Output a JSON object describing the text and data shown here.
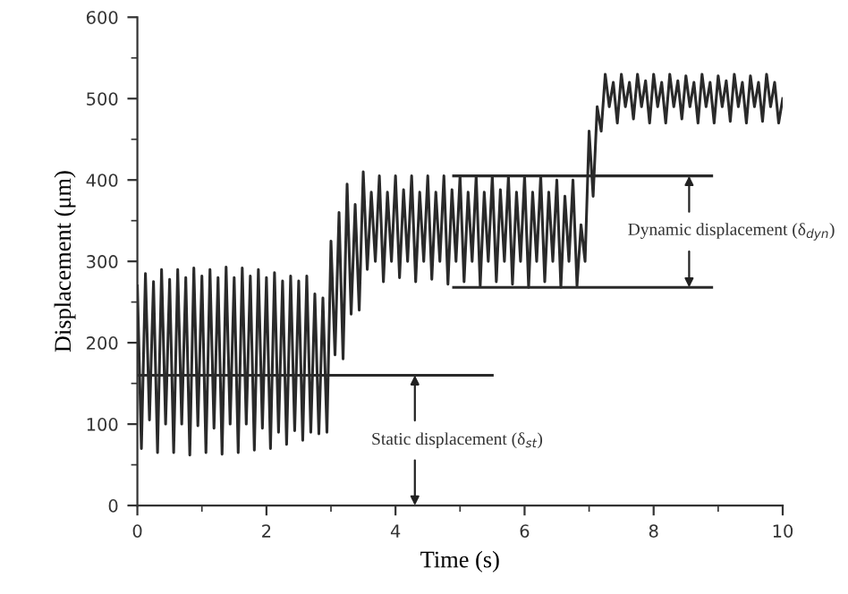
{
  "chart_data": {
    "type": "line",
    "xlabel": "Time (s)",
    "ylabel": "Displacement (μm)",
    "xlim": [
      0,
      10
    ],
    "ylim": [
      0,
      600
    ],
    "xticks": [
      0,
      {
        "value": 1,
        "label": null
      },
      2,
      {
        "value": 3,
        "label": null
      },
      4,
      {
        "value": 5,
        "label": null
      },
      6,
      {
        "value": 7,
        "label": null
      },
      8,
      {
        "value": 9,
        "label": null
      },
      10
    ],
    "yticks": [
      0,
      {
        "value": 50,
        "label": null
      },
      100,
      {
        "value": 150,
        "label": null
      },
      200,
      {
        "value": 250,
        "label": null
      },
      300,
      {
        "value": 350,
        "label": null
      },
      400,
      {
        "value": 450,
        "label": null
      },
      500,
      {
        "value": 550,
        "label": null
      },
      600
    ],
    "grid": false,
    "marker": "none",
    "line_style": "solid",
    "series": [
      {
        "color": "#2a2a2a",
        "x": [
          0,
          0.0625,
          0.125,
          0.1875,
          0.25,
          0.3125,
          0.375,
          0.4375,
          0.5,
          0.5625,
          0.625,
          0.6875,
          0.75,
          0.8125,
          0.875,
          0.9375,
          1,
          1.0625,
          1.125,
          1.1875,
          1.25,
          1.3125,
          1.375,
          1.4375,
          1.5,
          1.5625,
          1.625,
          1.6875,
          1.75,
          1.8125,
          1.875,
          1.9375,
          2,
          2.0625,
          2.125,
          2.1875,
          2.25,
          2.3125,
          2.375,
          2.4375,
          2.5,
          2.5625,
          2.625,
          2.6875,
          2.75,
          2.8125,
          2.875,
          2.9375,
          3,
          3.0625,
          3.125,
          3.1875,
          3.25,
          3.3125,
          3.375,
          3.4375,
          3.5,
          3.5625,
          3.625,
          3.6875,
          3.75,
          3.8125,
          3.875,
          3.9375,
          4,
          4.0625,
          4.125,
          4.1875,
          4.25,
          4.3125,
          4.375,
          4.4375,
          4.5,
          4.5625,
          4.625,
          4.6875,
          4.75,
          4.8125,
          4.875,
          4.9375,
          5,
          5.0625,
          5.125,
          5.1875,
          5.25,
          5.3125,
          5.375,
          5.4375,
          5.5,
          5.5625,
          5.625,
          5.6875,
          5.75,
          5.8125,
          5.875,
          5.9375,
          6,
          6.0625,
          6.125,
          6.1875,
          6.25,
          6.3125,
          6.375,
          6.4375,
          6.5,
          6.5625,
          6.625,
          6.6875,
          6.75,
          6.8125,
          6.875,
          6.9375,
          7,
          7.0625,
          7.125,
          7.1875,
          7.25,
          7.3125,
          7.375,
          7.4375,
          7.5,
          7.5625,
          7.625,
          7.6875,
          7.75,
          7.8125,
          7.875,
          7.9375,
          8,
          8.0625,
          8.125,
          8.1875,
          8.25,
          8.3125,
          8.375,
          8.4375,
          8.5,
          8.5625,
          8.625,
          8.6875,
          8.75,
          8.8125,
          8.875,
          8.9375,
          9,
          9.0625,
          9.125,
          9.1875,
          9.25,
          9.3125,
          9.375,
          9.4375,
          9.5,
          9.5625,
          9.625,
          9.6875,
          9.75,
          9.8125,
          9.875,
          9.9375,
          10
        ],
        "values": [
          270,
          70,
          285,
          105,
          275,
          65,
          290,
          100,
          278,
          65,
          290,
          100,
          280,
          62,
          292,
          98,
          282,
          65,
          290,
          95,
          280,
          63,
          293,
          100,
          280,
          65,
          292,
          100,
          282,
          68,
          290,
          95,
          280,
          70,
          286,
          90,
          276,
          75,
          282,
          92,
          276,
          80,
          282,
          90,
          260,
          88,
          255,
          90,
          325,
          185,
          360,
          180,
          395,
          235,
          370,
          240,
          410,
          290,
          385,
          300,
          405,
          275,
          385,
          300,
          405,
          280,
          388,
          300,
          405,
          275,
          385,
          300,
          405,
          278,
          385,
          300,
          405,
          272,
          388,
          300,
          405,
          275,
          385,
          300,
          405,
          270,
          385,
          300,
          405,
          275,
          388,
          300,
          405,
          272,
          385,
          300,
          405,
          268,
          385,
          300,
          405,
          275,
          385,
          300,
          400,
          268,
          380,
          300,
          400,
          270,
          345,
          300,
          460,
          380,
          490,
          460,
          530,
          490,
          520,
          470,
          530,
          490,
          520,
          475,
          530,
          490,
          522,
          470,
          530,
          490,
          520,
          470,
          530,
          490,
          522,
          475,
          528,
          490,
          520,
          470,
          530,
          490,
          520,
          470,
          528,
          490,
          522,
          472,
          530,
          490,
          520,
          470,
          528,
          490,
          520,
          472,
          530,
          490,
          520,
          470,
          500
        ]
      },
      {
        "color": "#2a2a2a",
        "x": [
          0,
          5.5
        ],
        "values": [
          160,
          160
        ]
      },
      {
        "color": "#2a2a2a",
        "x": [
          4.9,
          8.9
        ],
        "values": [
          405,
          405
        ]
      },
      {
        "color": "#2a2a2a",
        "x": [
          4.9,
          8.9
        ],
        "values": [
          268,
          268
        ]
      }
    ],
    "annotations": [
      {
        "text": "Static displacement (δ$_{st}$)",
        "x": 4.3,
        "y": 160
      },
      {
        "text": "Dynamic displacement (δ$_{dyn}$)",
        "x": 8.55,
        "y": 405
      }
    ]
  }
}
